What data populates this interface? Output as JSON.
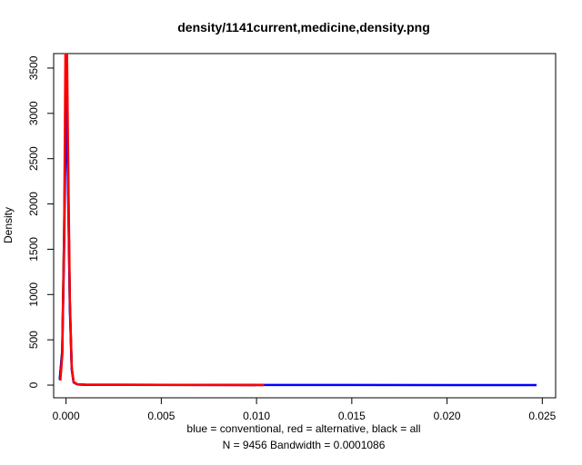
{
  "chart_data": {
    "type": "line",
    "title": "density/1141current,medicine,density.png",
    "xlabel": "blue = conventional, red = alternative, black = all",
    "sublabel": "N = 9456   Bandwidth = 0.0001086",
    "ylabel": "Density",
    "xlim": [
      -0.00065,
      0.0257
    ],
    "ylim": [
      -140,
      3660
    ],
    "x_ticks": [
      0.0,
      0.005,
      0.01,
      0.015,
      0.02,
      0.025
    ],
    "x_tick_labels": [
      "0.000",
      "0.005",
      "0.010",
      "0.015",
      "0.020",
      "0.025"
    ],
    "y_ticks": [
      0,
      500,
      1000,
      1500,
      2000,
      2500,
      3000,
      3500
    ],
    "y_tick_labels": [
      "0",
      "500",
      "1000",
      "1500",
      "2000",
      "2500",
      "3000",
      "3500"
    ],
    "grid": false,
    "series": [
      {
        "color": "#000000",
        "x": [
          -0.00033,
          -0.0002,
          -0.0001,
          0.0,
          0.0001,
          0.0002,
          0.0003,
          0.0004,
          0.0006,
          0.001,
          0.003,
          0.006,
          0.01
        ],
        "y": [
          60,
          380,
          1700,
          3350,
          2400,
          900,
          180,
          30,
          8,
          4,
          3,
          2,
          1
        ]
      },
      {
        "color": "#0000ff",
        "x": [
          -0.00033,
          -0.0002,
          -0.0001,
          0.0,
          0.0001,
          0.0002,
          0.0003,
          0.0004,
          0.0006,
          0.001,
          0.005,
          0.01,
          0.015,
          0.02,
          0.0247
        ],
        "y": [
          60,
          350,
          1500,
          3150,
          2300,
          850,
          170,
          30,
          8,
          4,
          3,
          2,
          2,
          1,
          0
        ]
      },
      {
        "color": "#ff0000",
        "x": [
          -0.0003,
          -0.0002,
          -0.0001,
          -3e-05,
          0.0,
          5e-05,
          0.0001,
          0.0002,
          0.0003,
          0.0004,
          0.0006,
          0.001,
          0.003,
          0.006,
          0.0104
        ],
        "y": [
          50,
          320,
          1650,
          3700,
          3900,
          3700,
          2700,
          950,
          190,
          35,
          9,
          5,
          4,
          3,
          1
        ]
      }
    ]
  }
}
